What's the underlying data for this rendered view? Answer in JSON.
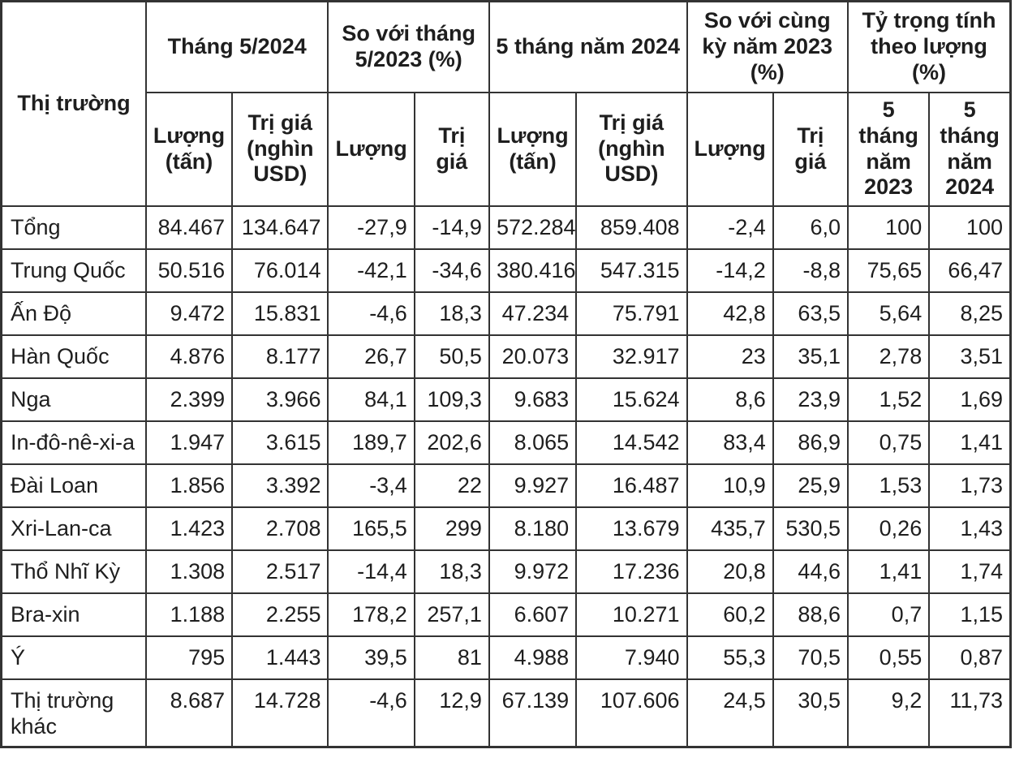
{
  "colors": {
    "border": "#333333",
    "text": "#1e1e1e",
    "background": "#ffffff"
  },
  "chart_data": {
    "type": "table",
    "corner_header": "Thị trường",
    "column_groups": [
      {
        "label": "Tháng 5/2024",
        "sub": [
          "Lượng (tấn)",
          "Trị giá (nghìn USD)"
        ]
      },
      {
        "label": "So với tháng 5/2023 (%)",
        "sub": [
          "Lượng",
          "Trị giá"
        ]
      },
      {
        "label": "5 tháng năm 2024",
        "sub": [
          "Lượng (tấn)",
          "Trị giá (nghìn USD)"
        ]
      },
      {
        "label": "So với  cùng kỳ năm 2023 (%)",
        "sub": [
          "Lượng",
          "Trị giá"
        ]
      },
      {
        "label": "Tỷ trọng tính theo lượng (%)",
        "sub": [
          "5 tháng năm 2023",
          "5 tháng năm 2024"
        ]
      }
    ],
    "rows": [
      {
        "market": "Tổng",
        "values": [
          "84.467",
          "134.647",
          "-27,9",
          "-14,9",
          "572.284",
          "859.408",
          "-2,4",
          "6,0",
          "100",
          "100"
        ]
      },
      {
        "market": "Trung Quốc",
        "values": [
          "50.516",
          "76.014",
          "-42,1",
          "-34,6",
          "380.416",
          "547.315",
          "-14,2",
          "-8,8",
          "75,65",
          "66,47"
        ]
      },
      {
        "market": "Ấn Độ",
        "values": [
          "9.472",
          "15.831",
          "-4,6",
          "18,3",
          "47.234",
          "75.791",
          "42,8",
          "63,5",
          "5,64",
          "8,25"
        ]
      },
      {
        "market": "Hàn Quốc",
        "values": [
          "4.876",
          "8.177",
          "26,7",
          "50,5",
          "20.073",
          "32.917",
          "23",
          "35,1",
          "2,78",
          "3,51"
        ]
      },
      {
        "market": "Nga",
        "values": [
          "2.399",
          "3.966",
          "84,1",
          "109,3",
          "9.683",
          "15.624",
          "8,6",
          "23,9",
          "1,52",
          "1,69"
        ]
      },
      {
        "market": "In-đô-nê-xi-a",
        "values": [
          "1.947",
          "3.615",
          "189,7",
          "202,6",
          "8.065",
          "14.542",
          "83,4",
          "86,9",
          "0,75",
          "1,41"
        ]
      },
      {
        "market": "Đài Loan",
        "values": [
          "1.856",
          "3.392",
          "-3,4",
          "22",
          "9.927",
          "16.487",
          "10,9",
          "25,9",
          "1,53",
          "1,73"
        ]
      },
      {
        "market": "Xri-Lan-ca",
        "values": [
          "1.423",
          "2.708",
          "165,5",
          "299",
          "8.180",
          "13.679",
          "435,7",
          "530,5",
          "0,26",
          "1,43"
        ]
      },
      {
        "market": "Thổ Nhĩ Kỳ",
        "values": [
          "1.308",
          "2.517",
          "-14,4",
          "18,3",
          "9.972",
          "17.236",
          "20,8",
          "44,6",
          "1,41",
          "1,74"
        ]
      },
      {
        "market": "Bra-xin",
        "values": [
          "1.188",
          "2.255",
          "178,2",
          "257,1",
          "6.607",
          "10.271",
          "60,2",
          "88,6",
          "0,7",
          "1,15"
        ]
      },
      {
        "market": "Ý",
        "values": [
          "795",
          "1.443",
          "39,5",
          "81",
          "4.988",
          "7.940",
          "55,3",
          "70,5",
          "0,55",
          "0,87"
        ]
      },
      {
        "market": "Thị trường khác",
        "values": [
          "8.687",
          "14.728",
          "-4,6",
          "12,9",
          "67.139",
          "107.606",
          "24,5",
          "30,5",
          "9,2",
          "11,73"
        ]
      }
    ]
  }
}
